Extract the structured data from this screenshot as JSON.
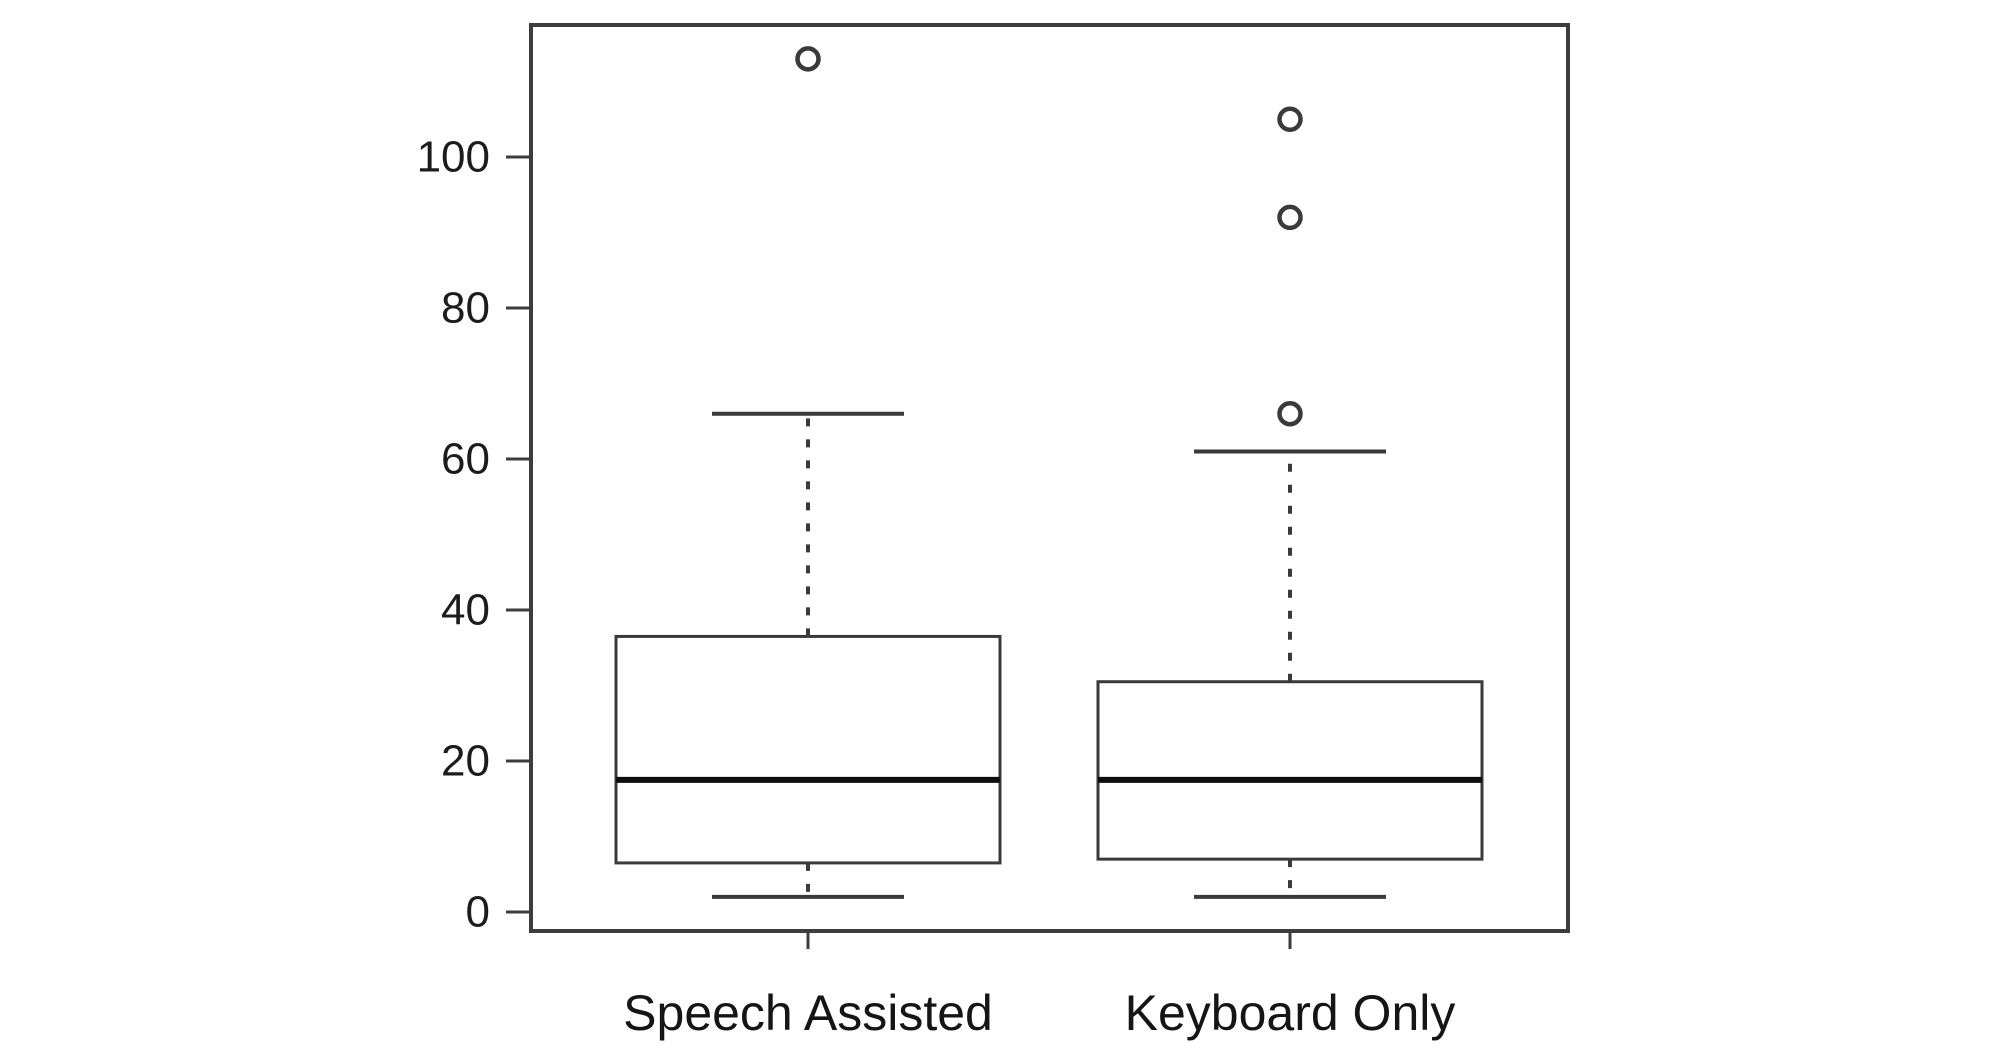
{
  "figure": {
    "background": "#ffffff",
    "line_color": "#3a3a3a",
    "median_color": "#0e0e0e",
    "text_color": "#1c1c1c"
  },
  "chart_data": {
    "type": "boxplot",
    "title": "",
    "xlabel": "",
    "ylabel": "",
    "grid": false,
    "legend": null,
    "categories": [
      "Speech Assisted",
      "Keyboard Only"
    ],
    "y_axis": {
      "ticks": [
        0,
        20,
        40,
        60,
        80,
        100
      ],
      "tick_labels": [
        "0",
        "20",
        "40",
        "60",
        "80",
        "100"
      ],
      "range": [
        -3,
        117.5
      ]
    },
    "series": [
      {
        "name": "Speech Assisted",
        "whisker_low": 2,
        "q1": 6.5,
        "median": 17.5,
        "q3": 36.5,
        "whisker_high": 66,
        "outliers": [
          113
        ]
      },
      {
        "name": "Keyboard Only",
        "whisker_low": 2,
        "q1": 7,
        "median": 17.5,
        "q3": 30.5,
        "whisker_high": 61,
        "outliers": [
          66,
          92,
          105
        ]
      }
    ]
  }
}
